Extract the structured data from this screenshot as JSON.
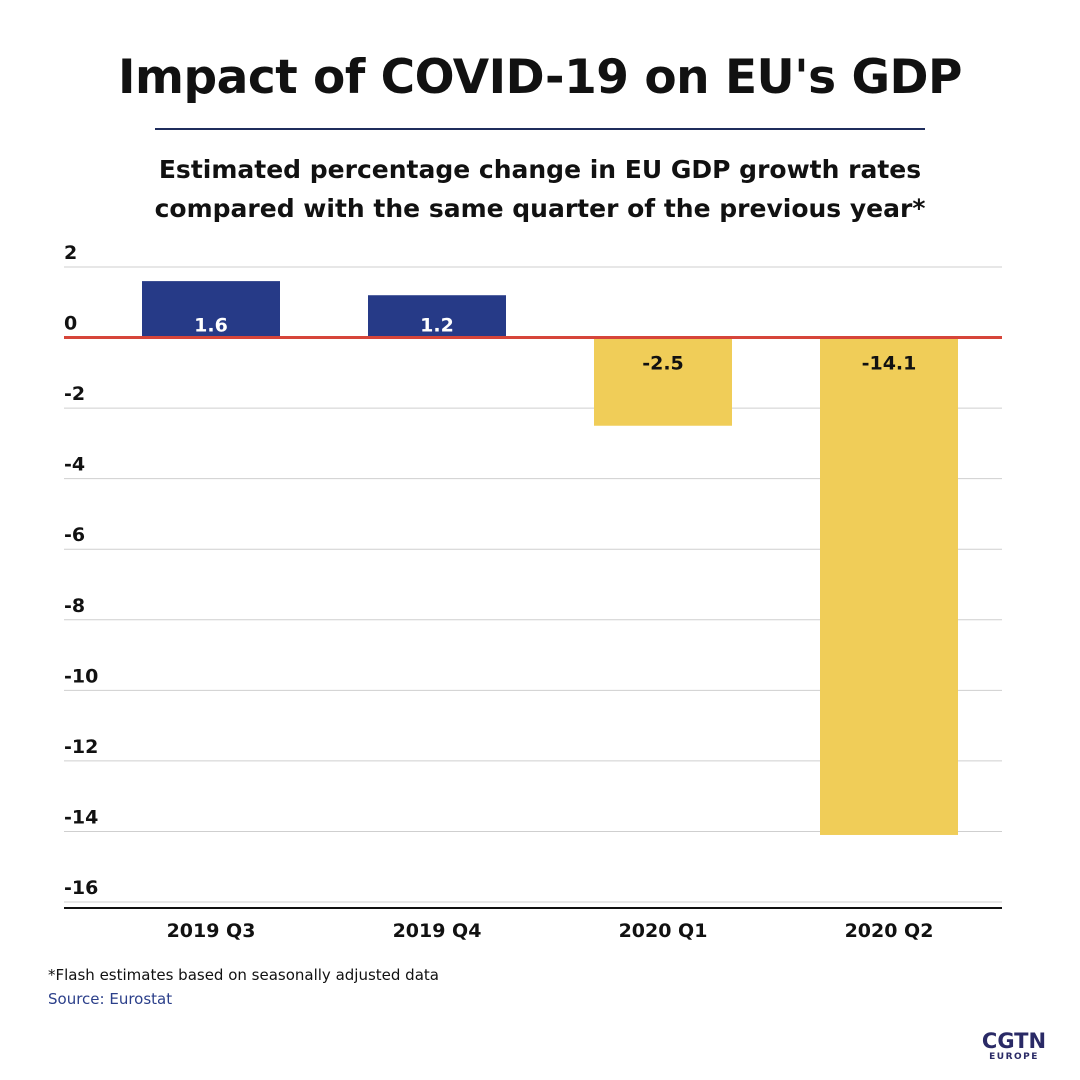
{
  "header": {
    "title": "Impact of COVID-19 on EU's GDP",
    "subtitle_line1": "Estimated percentage change in EU GDP growth rates",
    "subtitle_line2": "compared with the same quarter of the previous year*"
  },
  "footer": {
    "footnote": "*Flash estimates based on seasonally adjusted data",
    "source": "Source: Eurostat"
  },
  "logo": {
    "main": "CGTN",
    "sub": "EUROPE"
  },
  "colors": {
    "positive_bar": "#263a87",
    "negative_bar": "#f0cd58",
    "zero_line": "#d6453a",
    "grid": "#cfcfcf",
    "axis": "#111111",
    "title_rule": "#1f2d5c",
    "source_text": "#2b3f8a"
  },
  "chart_data": {
    "type": "bar",
    "categories": [
      "2019 Q3",
      "2019 Q4",
      "2020 Q1",
      "2020 Q2"
    ],
    "values": [
      1.6,
      1.2,
      -2.5,
      -14.1
    ],
    "data_labels": [
      "1.6",
      "1.2",
      "-2.5",
      "-14.1"
    ],
    "title": "Impact of COVID-19 on EU's GDP",
    "subtitle": "Estimated percentage change in EU GDP growth rates compared with the same quarter of the previous year*",
    "xlabel": "",
    "ylabel": "",
    "ylim": [
      -16,
      2
    ],
    "yticks": [
      2,
      0,
      -2,
      -4,
      -6,
      -8,
      -10,
      -12,
      -14,
      -16
    ],
    "ytick_labels": [
      "2",
      "0",
      "-2",
      "-4",
      "-6",
      "-8",
      "-10",
      "-12",
      "-14",
      "-16"
    ],
    "grid": true,
    "legend": "none"
  }
}
